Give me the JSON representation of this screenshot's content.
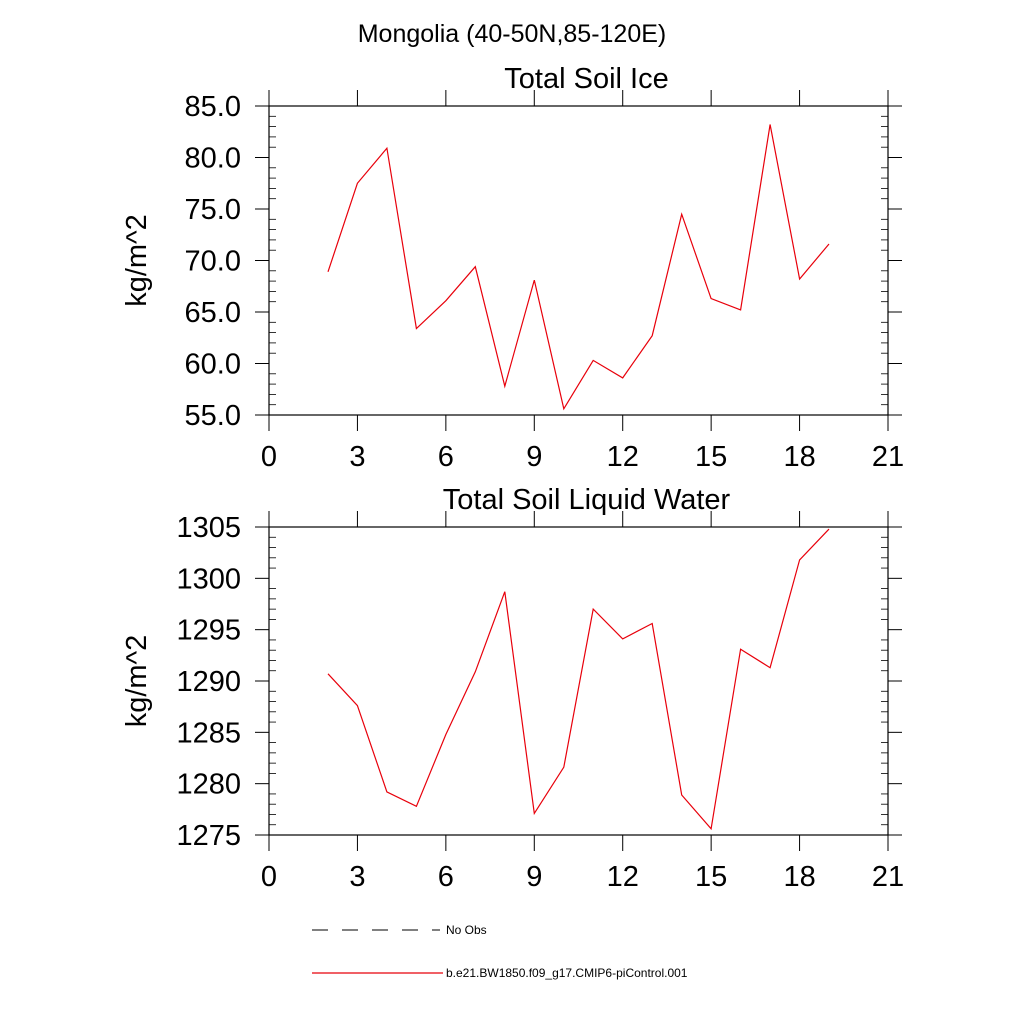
{
  "figure": {
    "suptitle": "Mongolia (40-50N,85-120E)",
    "line_color": "#e8000b",
    "axis_color": "#000000"
  },
  "chart_data": [
    {
      "type": "line",
      "title": "Total Soil Ice",
      "xlabel": "",
      "ylabel": "kg/m^2",
      "xlim": [
        0,
        21
      ],
      "ylim": [
        55,
        85
      ],
      "xticks": [
        0,
        3,
        6,
        9,
        12,
        15,
        18,
        21
      ],
      "xtick_labels": [
        "0",
        "3",
        "6",
        "9",
        "12",
        "15",
        "18",
        "21"
      ],
      "yticks": [
        55,
        60,
        65,
        70,
        75,
        80,
        85
      ],
      "ytick_labels": [
        "55.0",
        "60.0",
        "65.0",
        "70.0",
        "75.0",
        "80.0",
        "85.0"
      ],
      "grid": false,
      "series": [
        {
          "name": "b.e21.BW1850.f09_g17.CMIP6-piControl.001",
          "x": [
            2,
            3,
            4,
            5,
            6,
            7,
            8,
            9,
            10,
            11,
            12,
            13,
            14,
            15,
            16,
            17,
            18,
            19
          ],
          "values": [
            68.9,
            77.5,
            80.9,
            63.4,
            66.1,
            69.4,
            57.8,
            68.1,
            55.6,
            60.3,
            58.6,
            62.7,
            74.5,
            66.3,
            65.2,
            83.2,
            68.2,
            71.6
          ]
        }
      ]
    },
    {
      "type": "line",
      "title": "Total Soil Liquid Water",
      "xlabel": "",
      "ylabel": "kg/m^2",
      "xlim": [
        0,
        21
      ],
      "ylim": [
        1275,
        1305
      ],
      "xticks": [
        0,
        3,
        6,
        9,
        12,
        15,
        18,
        21
      ],
      "xtick_labels": [
        "0",
        "3",
        "6",
        "9",
        "12",
        "15",
        "18",
        "21"
      ],
      "yticks": [
        1275,
        1280,
        1285,
        1290,
        1295,
        1300,
        1305
      ],
      "ytick_labels": [
        "1275",
        "1280",
        "1285",
        "1290",
        "1295",
        "1300",
        "1305"
      ],
      "grid": false,
      "series": [
        {
          "name": "b.e21.BW1850.f09_g17.CMIP6-piControl.001",
          "x": [
            2,
            3,
            4,
            5,
            6,
            7,
            8,
            9,
            10,
            11,
            12,
            13,
            14,
            15,
            16,
            17,
            18,
            19
          ],
          "values": [
            1290.7,
            1287.6,
            1279.2,
            1277.8,
            1284.8,
            1290.9,
            1298.7,
            1277.1,
            1281.6,
            1297.0,
            1294.1,
            1295.6,
            1278.9,
            1275.6,
            1293.1,
            1291.3,
            1301.8,
            1304.8
          ]
        }
      ]
    }
  ],
  "legend": {
    "placement": "bottom-left",
    "items": [
      {
        "label": "No Obs",
        "style": "dashed",
        "color": "#000000"
      },
      {
        "label": "b.e21.BW1850.f09_g17.CMIP6-piControl.001",
        "style": "solid",
        "color": "#e8000b"
      }
    ]
  }
}
